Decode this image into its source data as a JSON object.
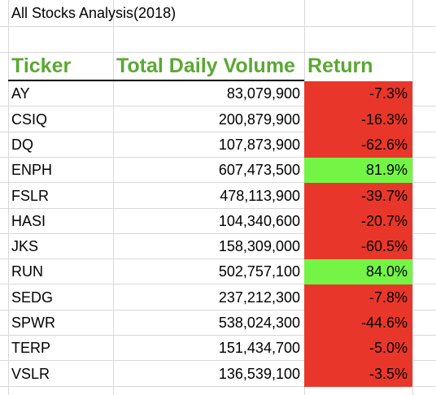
{
  "sheet": {
    "title": "All Stocks Analysis(2018)",
    "headers": {
      "ticker": "Ticker",
      "volume": "Total Daily Volume",
      "return": "Return"
    },
    "colors": {
      "header_text": "#5aa832",
      "negative_fill": "#e8372a",
      "positive_fill": "#74f545",
      "gridline": "#d8d8d8"
    },
    "rows": [
      {
        "ticker": "AY",
        "volume": "83,079,900",
        "return": "-7.3%",
        "sign": "neg"
      },
      {
        "ticker": "CSIQ",
        "volume": "200,879,900",
        "return": "-16.3%",
        "sign": "neg"
      },
      {
        "ticker": "DQ",
        "volume": "107,873,900",
        "return": "-62.6%",
        "sign": "neg"
      },
      {
        "ticker": "ENPH",
        "volume": "607,473,500",
        "return": "81.9%",
        "sign": "pos"
      },
      {
        "ticker": "FSLR",
        "volume": "478,113,900",
        "return": "-39.7%",
        "sign": "neg"
      },
      {
        "ticker": "HASI",
        "volume": "104,340,600",
        "return": "-20.7%",
        "sign": "neg"
      },
      {
        "ticker": "JKS",
        "volume": "158,309,000",
        "return": "-60.5%",
        "sign": "neg"
      },
      {
        "ticker": "RUN",
        "volume": "502,757,100",
        "return": "84.0%",
        "sign": "pos"
      },
      {
        "ticker": "SEDG",
        "volume": "237,212,300",
        "return": "-7.8%",
        "sign": "neg"
      },
      {
        "ticker": "SPWR",
        "volume": "538,024,300",
        "return": "-44.6%",
        "sign": "neg"
      },
      {
        "ticker": "TERP",
        "volume": "151,434,700",
        "return": "-5.0%",
        "sign": "neg"
      },
      {
        "ticker": "VSLR",
        "volume": "136,539,100",
        "return": "-3.5%",
        "sign": "neg"
      }
    ]
  }
}
